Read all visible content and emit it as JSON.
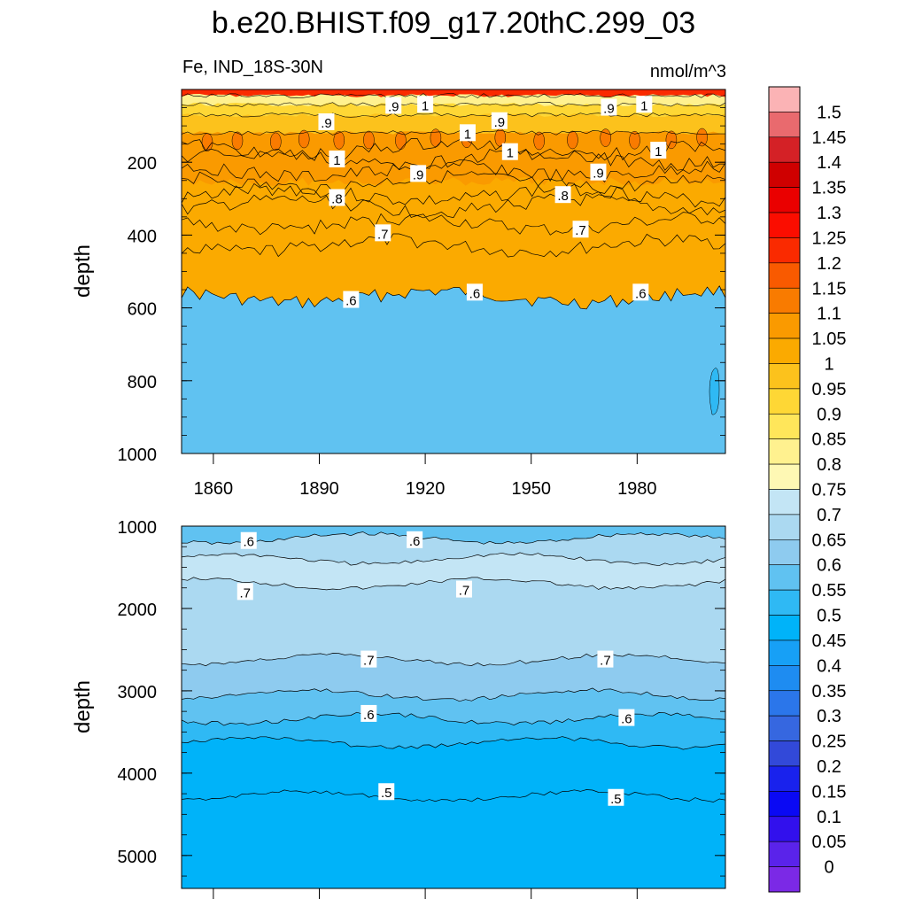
{
  "title": "b.e20.BHIST.f09_g17.20thC.299_03",
  "variable_label": "Fe, IND_18S-30N",
  "units_label": "nmol/m^3",
  "chart_data": [
    {
      "type": "heatmap",
      "panel": "upper",
      "ylabel": "depth",
      "ylim": [
        1000,
        0
      ],
      "xlim": [
        1851,
        2005
      ],
      "x_ticks": [
        "1860",
        "1890",
        "1920",
        "1950",
        "1980"
      ],
      "y_ticks": [
        "200",
        "400",
        "600",
        "800",
        "1000"
      ],
      "contours": [
        {
          "level": ".6",
          "mean_depth": 570
        },
        {
          "level": ".65",
          "mean_depth": 430
        },
        {
          "level": ".7",
          "mean_depth": 370
        },
        {
          "level": ".75",
          "mean_depth": 320
        },
        {
          "level": ".8",
          "mean_depth": 290
        },
        {
          "level": ".85",
          "mean_depth": 255
        },
        {
          "level": ".9",
          "mean_depth": 225
        },
        {
          "level": ".95",
          "mean_depth": 190
        },
        {
          "level": "1",
          "mean_depth": 165
        }
      ],
      "contour_labels": [
        {
          "text": ".9",
          "x": 1911,
          "y": 45
        },
        {
          "text": "1",
          "x": 1920,
          "y": 42
        },
        {
          "text": ".9",
          "x": 1892,
          "y": 90
        },
        {
          "text": ".9",
          "x": 1941,
          "y": 87
        },
        {
          "text": "1",
          "x": 1932,
          "y": 120
        },
        {
          "text": ".9",
          "x": 1972,
          "y": 50
        },
        {
          "text": "1",
          "x": 1982,
          "y": 42
        },
        {
          "text": "1",
          "x": 1895,
          "y": 192
        },
        {
          "text": "1",
          "x": 1944,
          "y": 172
        },
        {
          "text": ".9",
          "x": 1918,
          "y": 232
        },
        {
          "text": ".9",
          "x": 1969,
          "y": 228
        },
        {
          "text": "1",
          "x": 1986,
          "y": 168
        },
        {
          "text": ".8",
          "x": 1895,
          "y": 298
        },
        {
          "text": ".8",
          "x": 1959,
          "y": 290
        },
        {
          "text": ".7",
          "x": 1908,
          "y": 395
        },
        {
          "text": ".7",
          "x": 1964,
          "y": 385
        },
        {
          "text": ".6",
          "x": 1899,
          "y": 578
        },
        {
          "text": ".6",
          "x": 1934,
          "y": 558
        },
        {
          "text": ".6",
          "x": 1981,
          "y": 558
        }
      ]
    },
    {
      "type": "heatmap",
      "panel": "lower",
      "ylabel": "depth",
      "ylim": [
        5400,
        1000
      ],
      "xlim": [
        1851,
        2005
      ],
      "y_ticks": [
        "1000",
        "2000",
        "3000",
        "4000",
        "5000"
      ],
      "contours": [
        {
          "level": ".6",
          "mean_depth": 1150
        },
        {
          "level": ".65",
          "mean_depth": 1400
        },
        {
          "level": ".7",
          "mean_depth": 1700
        },
        {
          "level": ".7",
          "mean_depth": 2620
        },
        {
          "level": ".65",
          "mean_depth": 3050
        },
        {
          "level": ".6",
          "mean_depth": 3340
        },
        {
          "level": ".55",
          "mean_depth": 3630
        },
        {
          "level": ".5",
          "mean_depth": 4280
        }
      ],
      "contour_labels": [
        {
          "text": ".6",
          "x": 1870,
          "y": 1180
        },
        {
          "text": ".6",
          "x": 1917,
          "y": 1170
        },
        {
          "text": ".7",
          "x": 1869,
          "y": 1800
        },
        {
          "text": ".7",
          "x": 1931,
          "y": 1770
        },
        {
          "text": ".7",
          "x": 1904,
          "y": 2620
        },
        {
          "text": ".7",
          "x": 1971,
          "y": 2620
        },
        {
          "text": ".6",
          "x": 1904,
          "y": 3280
        },
        {
          "text": ".6",
          "x": 1977,
          "y": 3330
        },
        {
          "text": ".5",
          "x": 1909,
          "y": 4230
        },
        {
          "text": ".5",
          "x": 1974,
          "y": 4300
        }
      ]
    }
  ],
  "colorbar": {
    "labels": [
      "1.5",
      "1.45",
      "1.4",
      "1.35",
      "1.3",
      "1.25",
      "1.2",
      "1.15",
      "1.1",
      "1.05",
      "1",
      "0.95",
      "0.9",
      "0.85",
      "0.8",
      "0.75",
      "0.7",
      "0.65",
      "0.6",
      "0.55",
      "0.5",
      "0.45",
      "0.4",
      "0.35",
      "0.3",
      "0.25",
      "0.2",
      "0.15",
      "0.1",
      "0.05",
      "0"
    ],
    "colors": [
      "#fbb3b5",
      "#e96a6e",
      "#d42126",
      "#cf0000",
      "#ea0000",
      "#fb0d00",
      "#fa2a00",
      "#f95a00",
      "#f97b00",
      "#fa9a00",
      "#fbaa00",
      "#fcc21c",
      "#fed735",
      "#ffe65a",
      "#fff18f",
      "#fef8b4",
      "#c3e5f5",
      "#abd9f1",
      "#8ecbef",
      "#60c2f1",
      "#2fb9f4",
      "#00b3f9",
      "#17a0f6",
      "#1e8cf1",
      "#2b76ea",
      "#3667e0",
      "#3249d9",
      "#1922ed",
      "#0a09f4",
      "#3210ed",
      "#5a23ea",
      "#7b29e6"
    ]
  }
}
